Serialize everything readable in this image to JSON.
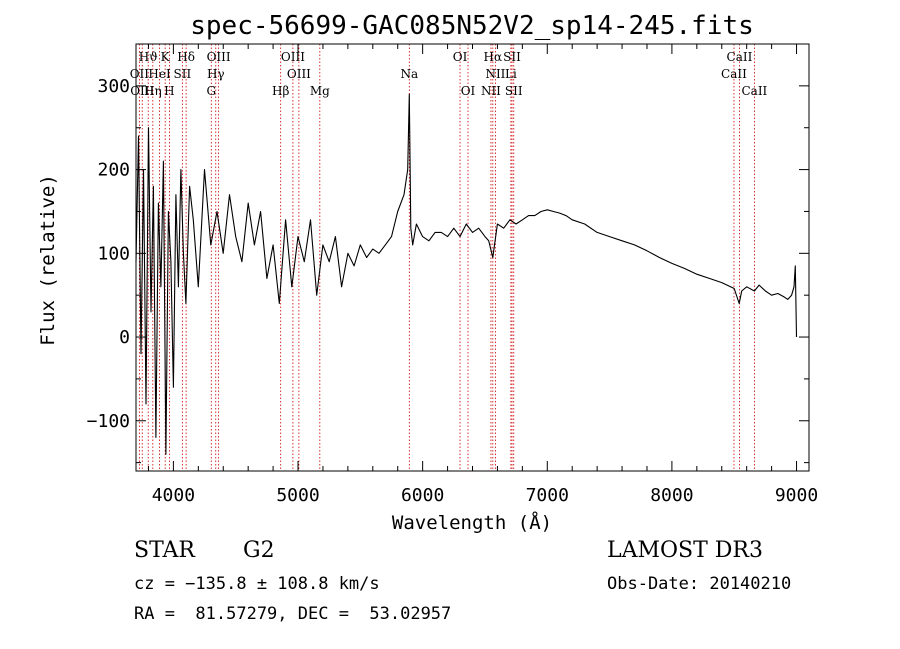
{
  "chart_data": {
    "type": "line",
    "title": "spec-56699-GAC085N52V2_sp14-245.fits",
    "xlabel": "Wavelength (Å)",
    "ylabel": "Flux (relative)",
    "xlim": [
      3700,
      9100
    ],
    "ylim": [
      -160,
      350
    ],
    "xticks": [
      "4000",
      "5000",
      "6000",
      "7000",
      "8000",
      "9000"
    ],
    "xtick_values": [
      4000,
      5000,
      6000,
      7000,
      8000,
      9000
    ],
    "yticks": [
      "−100",
      "0",
      "100",
      "200",
      "300"
    ],
    "ytick_values": [
      -100,
      0,
      100,
      200,
      300
    ],
    "series": [
      {
        "name": "flux",
        "x": [
          3700,
          3720,
          3740,
          3760,
          3780,
          3800,
          3820,
          3840,
          3860,
          3880,
          3900,
          3920,
          3940,
          3960,
          3980,
          4000,
          4020,
          4040,
          4060,
          4080,
          4100,
          4130,
          4160,
          4200,
          4250,
          4300,
          4350,
          4400,
          4450,
          4500,
          4550,
          4600,
          4650,
          4700,
          4750,
          4800,
          4850,
          4900,
          4950,
          5000,
          5050,
          5100,
          5150,
          5200,
          5250,
          5300,
          5350,
          5400,
          5450,
          5500,
          5550,
          5600,
          5650,
          5700,
          5750,
          5800,
          5850,
          5880,
          5893,
          5905,
          5920,
          5950,
          6000,
          6050,
          6100,
          6150,
          6200,
          6250,
          6300,
          6350,
          6400,
          6450,
          6500,
          6530,
          6563,
          6600,
          6650,
          6700,
          6750,
          6800,
          6850,
          6900,
          6950,
          7000,
          7050,
          7100,
          7150,
          7200,
          7300,
          7400,
          7500,
          7600,
          7700,
          7800,
          7900,
          8000,
          8100,
          8200,
          8300,
          8400,
          8500,
          8540,
          8560,
          8600,
          8662,
          8700,
          8750,
          8800,
          8850,
          8900,
          8930,
          8960,
          8980,
          8990,
          9000
        ],
        "y": [
          90,
          240,
          -20,
          200,
          -80,
          250,
          30,
          180,
          -120,
          160,
          60,
          210,
          -140,
          150,
          90,
          -60,
          170,
          60,
          200,
          100,
          40,
          180,
          140,
          60,
          200,
          110,
          150,
          100,
          170,
          120,
          90,
          160,
          110,
          150,
          70,
          110,
          40,
          140,
          60,
          120,
          90,
          140,
          50,
          110,
          90,
          120,
          60,
          100,
          85,
          110,
          95,
          105,
          100,
          110,
          120,
          150,
          170,
          200,
          290,
          130,
          110,
          135,
          120,
          115,
          125,
          125,
          120,
          130,
          120,
          135,
          125,
          130,
          120,
          115,
          95,
          135,
          130,
          140,
          135,
          140,
          145,
          145,
          150,
          152,
          150,
          148,
          145,
          140,
          135,
          125,
          120,
          115,
          110,
          103,
          95,
          88,
          82,
          75,
          70,
          65,
          58,
          40,
          55,
          60,
          55,
          62,
          55,
          50,
          52,
          48,
          45,
          50,
          60,
          85,
          0
        ]
      }
    ],
    "spectral_lines": [
      {
        "label": "Hϑ",
        "wavelength": 3798,
        "row": 1
      },
      {
        "label": "K",
        "wavelength": 3934,
        "row": 1
      },
      {
        "label": "Hδ",
        "wavelength": 4102,
        "row": 1
      },
      {
        "label": "OIII",
        "wavelength": 4363,
        "row": 1
      },
      {
        "label": "OIII",
        "wavelength": 4959,
        "row": 1
      },
      {
        "label": "OI",
        "wavelength": 6300,
        "row": 1
      },
      {
        "label": "Hα",
        "wavelength": 6563,
        "row": 1
      },
      {
        "label": "SII",
        "wavelength": 6717,
        "row": 1
      },
      {
        "label": "CaII",
        "wavelength": 8542,
        "row": 1
      },
      {
        "label": "OII",
        "wavelength": 3727,
        "row": 2
      },
      {
        "label": "HeI",
        "wavelength": 3889,
        "row": 2
      },
      {
        "label": "SII",
        "wavelength": 4072,
        "row": 2
      },
      {
        "label": "Hγ",
        "wavelength": 4340,
        "row": 2
      },
      {
        "label": "OIII",
        "wavelength": 5007,
        "row": 2
      },
      {
        "label": "Na",
        "wavelength": 5893,
        "row": 2
      },
      {
        "label": "NII",
        "wavelength": 6584,
        "row": 2
      },
      {
        "label": "Li",
        "wavelength": 6708,
        "row": 2
      },
      {
        "label": "CaII",
        "wavelength": 8498,
        "row": 2
      },
      {
        "label": "OIII",
        "wavelength": 3750,
        "row": 3
      },
      {
        "label": "Hη",
        "wavelength": 3835,
        "row": 3
      },
      {
        "label": "H",
        "wavelength": 3968,
        "row": 3
      },
      {
        "label": "G",
        "wavelength": 4304,
        "row": 3
      },
      {
        "label": "Hβ",
        "wavelength": 4861,
        "row": 3
      },
      {
        "label": "Mg",
        "wavelength": 5175,
        "row": 3
      },
      {
        "label": "OI",
        "wavelength": 6364,
        "row": 3
      },
      {
        "label": "NII",
        "wavelength": 6548,
        "row": 3
      },
      {
        "label": "SII",
        "wavelength": 6731,
        "row": 3
      },
      {
        "label": "CaII",
        "wavelength": 8662,
        "row": 3
      }
    ],
    "line_color": "#cc0000",
    "spectrum_color": "#000000"
  },
  "footer": {
    "object_type": "STAR",
    "subclass": "G2",
    "redshift": "cz = −135.8 ± 108.8 km/s",
    "coords": "RA =  81.57279, DEC =  53.02957",
    "survey": "LAMOST DR3",
    "obs_date": "Obs-Date: 20140210"
  }
}
